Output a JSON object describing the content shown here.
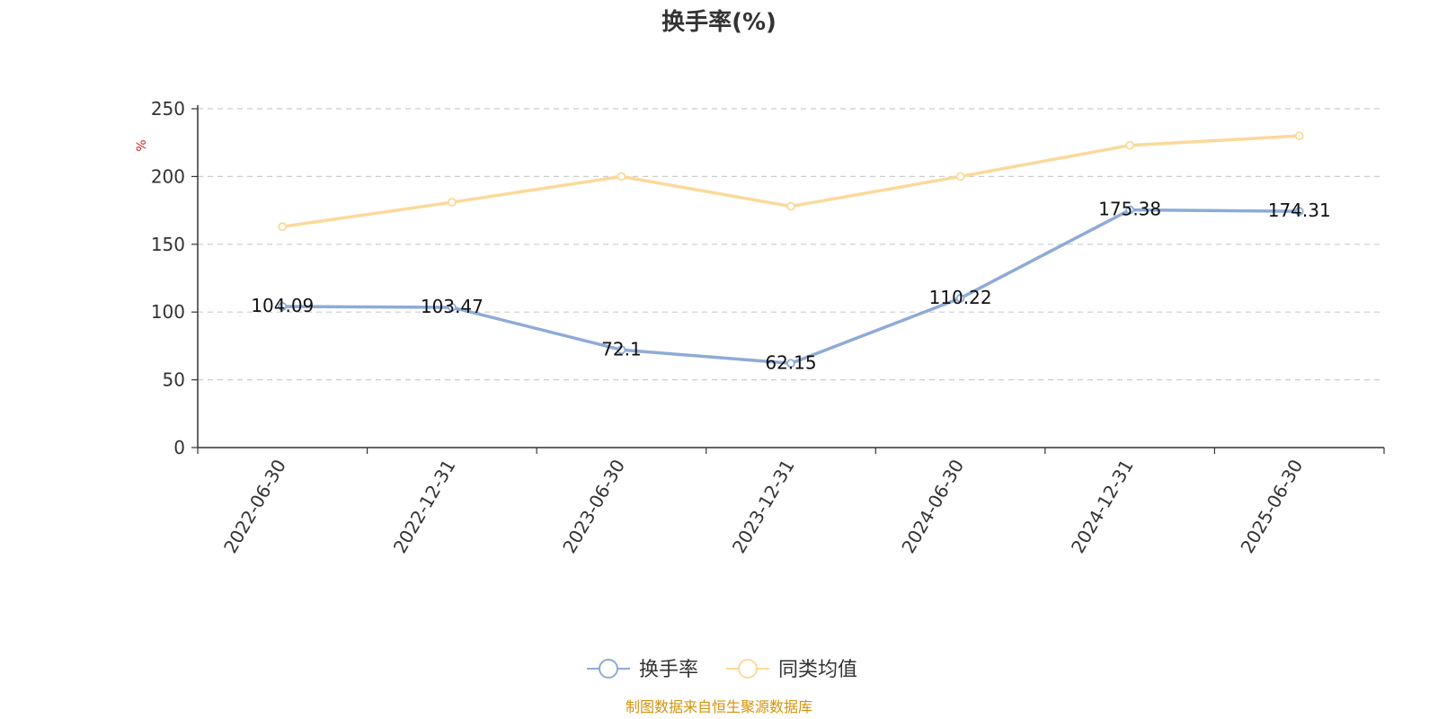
{
  "title": "换手率(%)",
  "source": "制图数据来自恒生聚源数据库",
  "chart_data": {
    "type": "line",
    "title": "换手率(%)",
    "ylabel": "%",
    "ylim": [
      0,
      250
    ],
    "yticks": [
      0,
      50,
      100,
      150,
      200,
      250
    ],
    "grid": true,
    "legend_position": "bottom",
    "x": [
      "2022-06-30",
      "2022-12-31",
      "2023-06-30",
      "2023-12-31",
      "2024-06-30",
      "2024-12-31",
      "2025-06-30"
    ],
    "series": [
      {
        "name": "换手率",
        "color": "#8eabd6",
        "values": [
          104.09,
          103.47,
          72.1,
          62.15,
          110.22,
          175.38,
          174.31
        ],
        "labels": [
          "104.09",
          "103.47",
          "72.1",
          "62.15",
          "110.22",
          "175.38",
          "174.31"
        ]
      },
      {
        "name": "同类均值",
        "color": "#fcd99a",
        "values": [
          163,
          181,
          200,
          178,
          200,
          223,
          230
        ]
      }
    ]
  }
}
